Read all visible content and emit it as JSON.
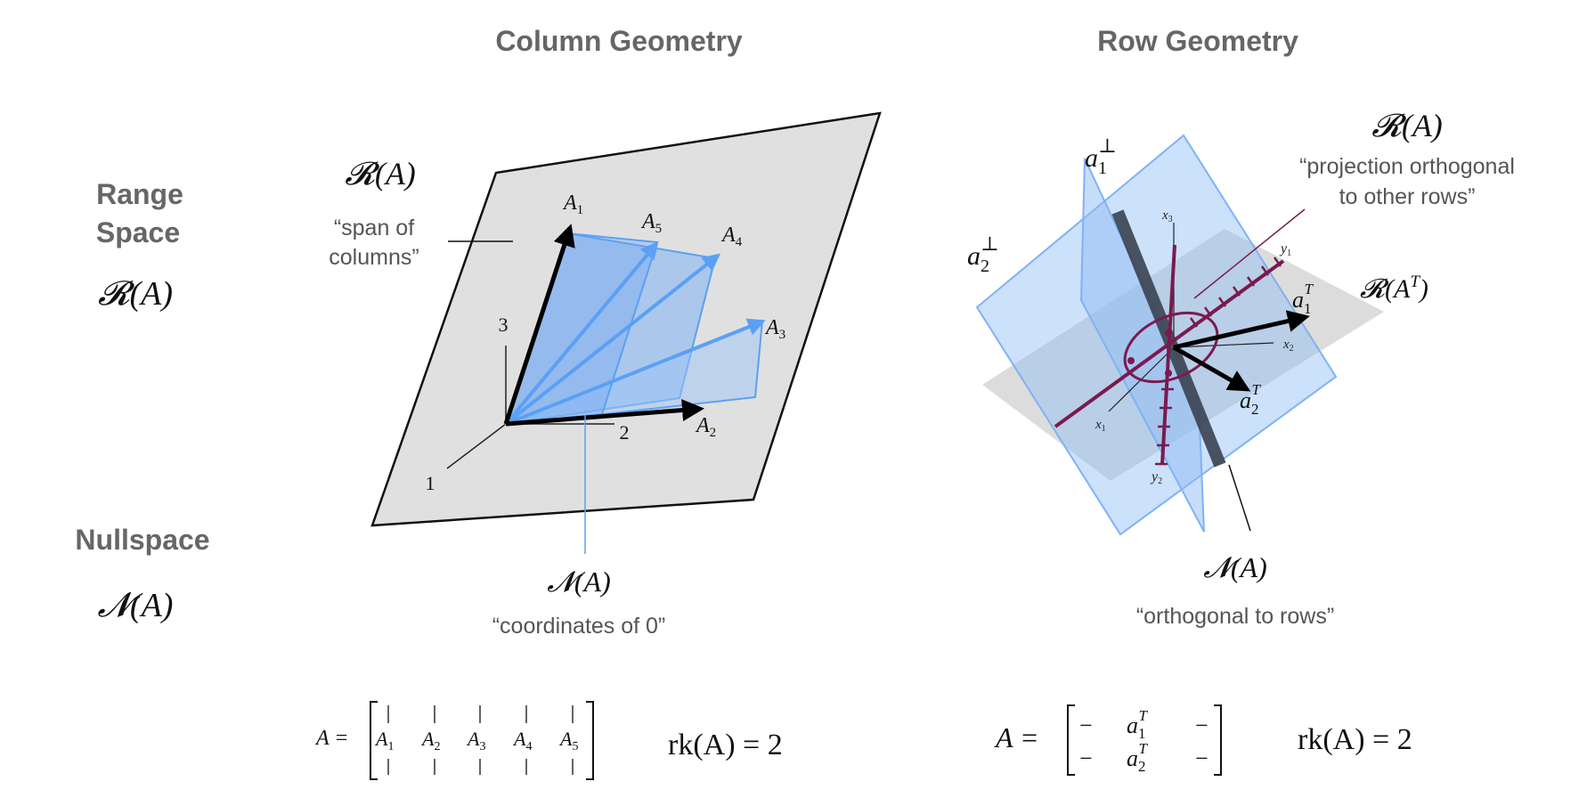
{
  "headers": {
    "column": "Column Geometry",
    "row": "Row Geometry"
  },
  "side_labels": {
    "range_line1": "Range",
    "range_line2": "Space",
    "range_symbol": "𝓡(A)",
    "null_title": "Nullspace",
    "null_symbol": "𝓝(A)"
  },
  "column_panel": {
    "range_symbol": "𝓡(A)",
    "span_line1": "“span of",
    "span_line2": "columns”",
    "axis_1": "1",
    "axis_2": "2",
    "axis_3": "3",
    "vectors": [
      "A1",
      "A2",
      "A3",
      "A4",
      "A5"
    ],
    "vector_base": "A",
    "vector_subs": [
      "1",
      "2",
      "3",
      "4",
      "5"
    ],
    "null_symbol": "𝓝(A)",
    "null_caption": "“coordinates of 0”"
  },
  "row_panel": {
    "a1_perp_base": "a",
    "a1_perp_sub": "1",
    "a2_perp_sub": "2",
    "perp_sup": "⊥",
    "range_symbol": "𝓡(A)",
    "projection_line1": "“projection orthogonal",
    "projection_line2": "to other rows”",
    "range_t_symbol": "𝓡(A",
    "range_t_sup": "T",
    "range_t_close": ")",
    "x1": "x",
    "x1_sub": "1",
    "x2_sub": "2",
    "x3_sub": "3",
    "y1": "y",
    "y1_sub": "1",
    "y2_sub": "2",
    "a1T_base": "a",
    "a1T_sub": "1",
    "a1T_sup": "T",
    "a2T_sub": "2",
    "null_symbol": "𝓝(A)",
    "null_caption": "“orthogonal to rows”"
  },
  "equations": {
    "col_lhs": "A =",
    "col_entries": [
      "A1",
      "A2",
      "A3",
      "A4",
      "A5"
    ],
    "col_rank": "rk(A) = 2",
    "row_lhs": "A =",
    "row_dash": "−",
    "row_rank": "rk(A) = 2"
  },
  "colors": {
    "gray_plane": "#e0e0e0",
    "blue_plane": "#7fb2f5",
    "blue_arrow": "#5aa0f5",
    "maroon": "#7a1a4e",
    "null_line": "#3a4350",
    "header_gray": "#666666"
  }
}
